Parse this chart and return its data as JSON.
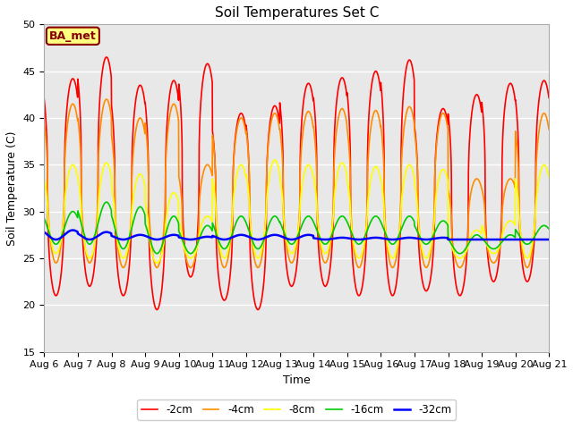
{
  "title": "Soil Temperatures Set C",
  "xlabel": "Time",
  "ylabel": "Soil Temperature (C)",
  "ylim": [
    15,
    50
  ],
  "xlim": [
    0,
    15
  ],
  "xtick_labels": [
    "Aug 6",
    "Aug 7",
    "Aug 8",
    "Aug 9",
    "Aug 10",
    "Aug 11",
    "Aug 12",
    "Aug 13",
    "Aug 14",
    "Aug 15",
    "Aug 16",
    "Aug 17",
    "Aug 18",
    "Aug 19",
    "Aug 20",
    "Aug 21"
  ],
  "xtick_positions": [
    0,
    1,
    2,
    3,
    4,
    5,
    6,
    7,
    8,
    9,
    10,
    11,
    12,
    13,
    14,
    15
  ],
  "ytick_positions": [
    15,
    20,
    25,
    30,
    35,
    40,
    45,
    50
  ],
  "legend_labels": [
    "-2cm",
    "-4cm",
    "-8cm",
    "-16cm",
    "-32cm"
  ],
  "line_colors": [
    "#ff0000",
    "#ff8c00",
    "#ffff00",
    "#00cc00",
    "#0000ff"
  ],
  "line_widths": [
    1.2,
    1.2,
    1.2,
    1.2,
    1.8
  ],
  "annotation_text": "BA_met",
  "annotation_bg": "#ffff80",
  "annotation_border": "#880000",
  "plot_bg": "#e8e8e8",
  "grid_color": "#ffffff",
  "title_fontsize": 11,
  "label_fontsize": 9,
  "tick_fontsize": 8,
  "peaks_2cm": [
    44.2,
    21.0,
    46.5,
    22.0,
    43.5,
    21.0,
    44.0,
    19.5,
    45.8,
    23.0,
    40.5,
    20.5,
    41.3,
    19.5,
    43.7,
    22.0,
    44.3,
    22.0,
    45.0,
    21.0,
    46.2,
    21.0,
    41.0,
    21.5,
    42.5,
    21.0,
    43.7,
    22.5,
    44.0,
    22.5
  ],
  "peaks_4cm": [
    41.5,
    24.5,
    42.0,
    24.5,
    40.0,
    24.0,
    41.5,
    24.0,
    35.0,
    24.0,
    40.0,
    24.0,
    40.5,
    24.0,
    40.7,
    24.5,
    41.0,
    24.5,
    40.8,
    24.0,
    41.2,
    24.0,
    40.5,
    24.0,
    33.5,
    24.0,
    33.5,
    24.5,
    40.5,
    24.0
  ],
  "peaks_8cm": [
    35.0,
    25.5,
    35.2,
    25.0,
    34.0,
    25.0,
    32.0,
    24.5,
    29.5,
    25.0,
    35.0,
    25.0,
    35.5,
    25.0,
    35.0,
    25.5,
    35.2,
    25.5,
    34.8,
    25.0,
    35.0,
    25.0,
    34.5,
    25.0,
    28.0,
    25.0,
    29.0,
    25.5,
    35.0,
    25.0
  ],
  "peaks_16cm": [
    30.0,
    26.5,
    31.0,
    26.5,
    30.5,
    26.0,
    29.5,
    25.5,
    28.5,
    25.5,
    29.5,
    26.0,
    29.5,
    26.0,
    29.5,
    26.5,
    29.5,
    26.5,
    29.5,
    26.5,
    29.5,
    26.5,
    29.0,
    26.5,
    27.5,
    25.5,
    27.5,
    26.0,
    28.5,
    26.5
  ],
  "peaks_32cm": [
    28.0,
    27.0,
    27.8,
    27.0,
    27.5,
    27.0,
    27.5,
    27.0,
    27.3,
    27.0,
    27.5,
    27.0,
    27.5,
    27.0,
    27.5,
    27.0,
    27.2,
    27.0,
    27.2,
    27.0,
    27.2,
    27.0,
    27.2,
    27.0,
    27.0,
    27.0,
    27.0,
    27.0,
    27.0,
    27.0
  ]
}
